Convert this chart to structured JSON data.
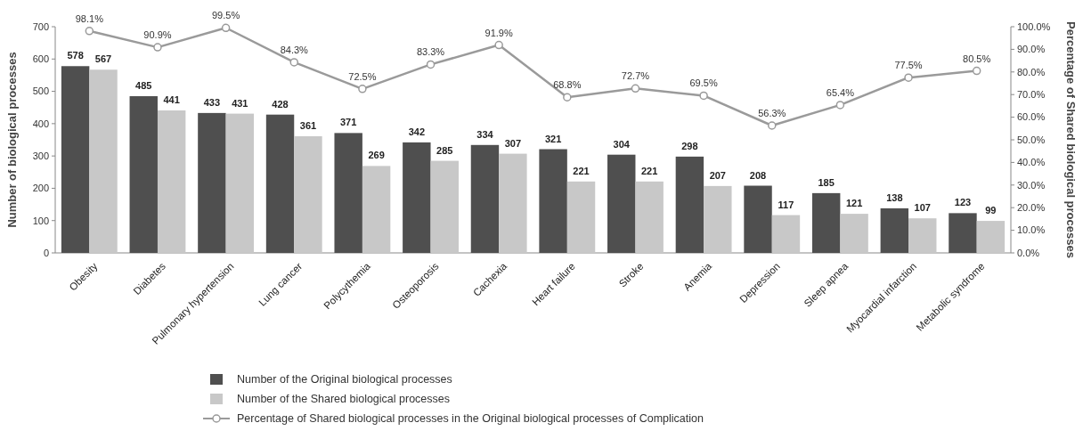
{
  "chart_data": {
    "type": "bar",
    "categories": [
      "Obesity",
      "Diabetes",
      "Pulmonary hypertension",
      "Lung cancer",
      "Polycythemia",
      "Osteoporosis",
      "Cachexia",
      "Heart failure",
      "Stroke",
      "Anemia",
      "Depression",
      "Sleep apnea",
      "Myocardial infarction",
      "Metabolic syndrome"
    ],
    "series": [
      {
        "name": "Number of the Original biological processes",
        "color": "#4f4f4f",
        "values": [
          578,
          485,
          433,
          428,
          371,
          342,
          334,
          321,
          304,
          298,
          208,
          185,
          138,
          123
        ]
      },
      {
        "name": "Number of the Shared biological processes",
        "color": "#c8c8c8",
        "values": [
          567,
          441,
          431,
          361,
          269,
          285,
          307,
          221,
          221,
          207,
          117,
          121,
          107,
          99
        ]
      },
      {
        "name": "Percentage of Shared biological processes in the Original biological processes of Complication",
        "type": "line",
        "axis": "y2",
        "color": "#9a9a9a",
        "marker": "circle",
        "values": [
          98.1,
          90.9,
          99.5,
          84.3,
          72.5,
          83.3,
          91.9,
          68.8,
          72.7,
          69.5,
          56.3,
          65.4,
          77.5,
          80.5
        ],
        "value_labels": [
          "98.1%",
          "90.9%",
          "99.5%",
          "84.3%",
          "72.5%",
          "83.3%",
          "91.9%",
          "68.8%",
          "72.7%",
          "69.5%",
          "56.3%",
          "65.4%",
          "77.5%",
          "80.5%"
        ]
      }
    ],
    "ylabel": "Number of biological processes",
    "y2label": "Percentage of Shared biological processes",
    "ylim": [
      0,
      700
    ],
    "yticks": [
      0,
      100,
      200,
      300,
      400,
      500,
      600,
      700
    ],
    "y2lim": [
      0,
      100
    ],
    "y2ticks": [
      {
        "value": 0,
        "label": "0.0%"
      },
      {
        "value": 10,
        "label": "10.0%"
      },
      {
        "value": 20,
        "label": "20.0%"
      },
      {
        "value": 30,
        "label": "30.0%"
      },
      {
        "value": 40,
        "label": "40.0%"
      },
      {
        "value": 50,
        "label": "50.0%"
      },
      {
        "value": 60,
        "label": "60.0%"
      },
      {
        "value": 70,
        "label": "70.0%"
      },
      {
        "value": 80,
        "label": "80.0%"
      },
      {
        "value": 90,
        "label": "90.0%"
      },
      {
        "value": 100,
        "label": "100.0%"
      }
    ],
    "data_labels": true,
    "legend": "bottom",
    "grid": false
  }
}
